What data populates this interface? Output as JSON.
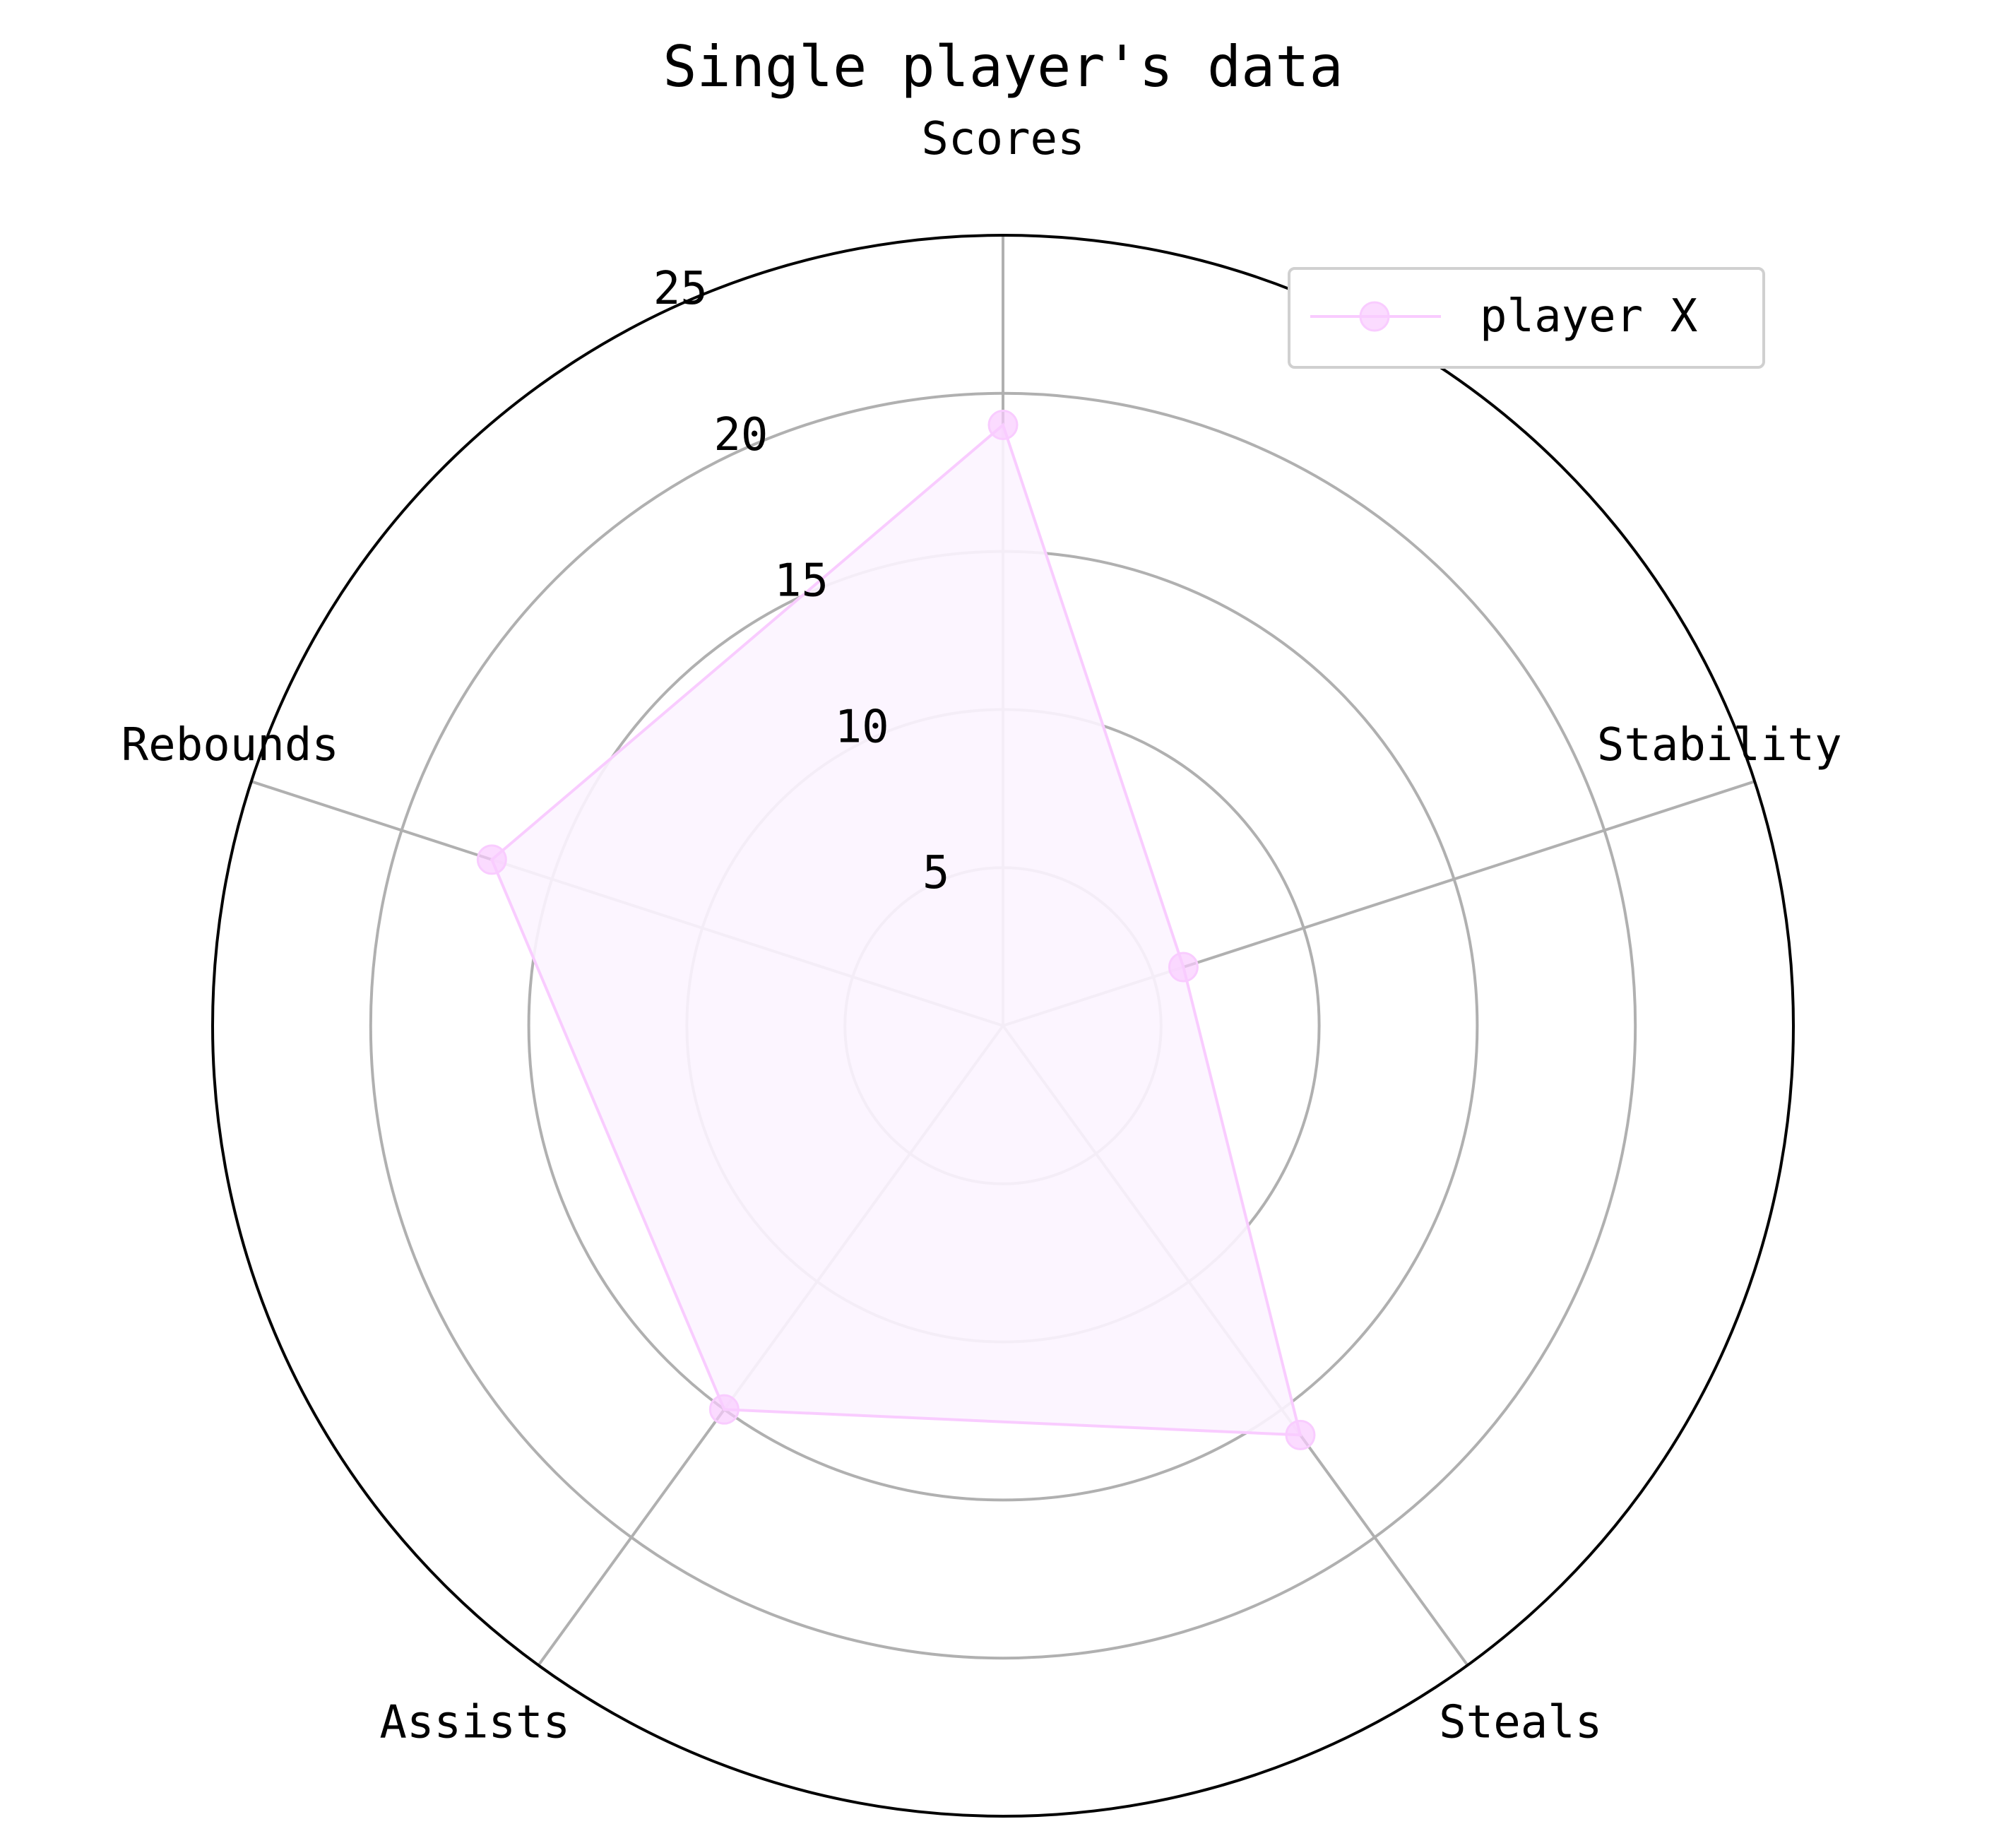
{
  "chart_data": {
    "type": "radar",
    "title": "Single player's data",
    "categories": [
      "Scores",
      "Stability",
      "Steals",
      "Assists",
      "Rebounds"
    ],
    "series": [
      {
        "name": "player X",
        "values": [
          19,
          6,
          16,
          15,
          17
        ]
      }
    ],
    "rlim": [
      0,
      25
    ],
    "radial_ticks": [
      5,
      10,
      15,
      20,
      25
    ],
    "grid": true,
    "legend": {
      "position": "top-right",
      "entries": [
        "player X"
      ]
    },
    "colors": {
      "series": "#f9ccff",
      "fill": "#fcf4ff",
      "grid": "#b0b0b0",
      "outer_ring": "#000000",
      "legend_border": "#d0d0d0"
    }
  }
}
